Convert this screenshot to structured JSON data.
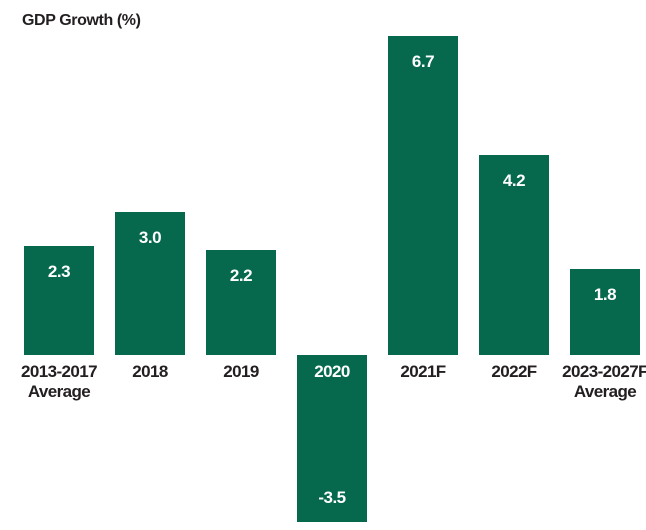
{
  "chart_data": {
    "type": "bar",
    "title": "GDP Growth (%)",
    "ylabel": "GDP Growth (%)",
    "xlabel": "",
    "categories": [
      "2013-2017\nAverage",
      "2018",
      "2019",
      "2020",
      "2021F",
      "2022F",
      "2023-2027F\nAverage"
    ],
    "values": [
      2.3,
      3.0,
      2.2,
      -3.5,
      6.7,
      4.2,
      1.8
    ],
    "value_labels": [
      "2.3",
      "3.0",
      "2.2",
      "-3.5",
      "6.7",
      "4.2",
      "1.8"
    ],
    "ylim": [
      -3.7,
      6.8
    ],
    "grid": false,
    "legend": false,
    "baseline": 0,
    "colors": {
      "bar": "#06694e",
      "value_label": "#ffffff",
      "axis_label": "#231f20",
      "background": "#ffffff"
    }
  }
}
